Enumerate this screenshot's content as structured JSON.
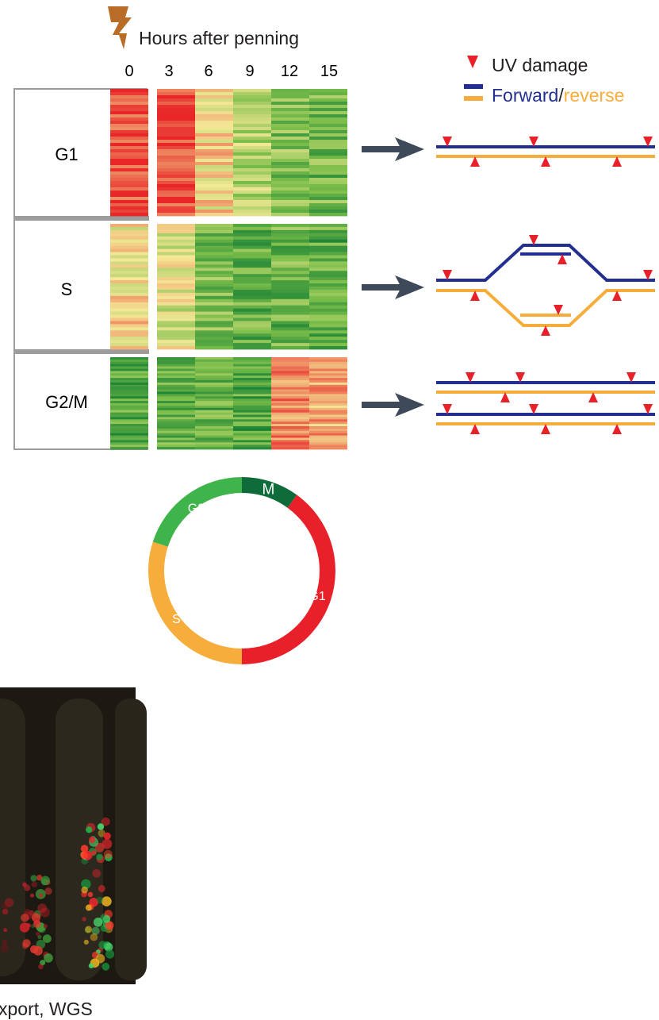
{
  "header": {
    "title": "Hours after penning",
    "hours": [
      "0",
      "3",
      "6",
      "9",
      "12",
      "15"
    ]
  },
  "phases": [
    {
      "label": "G1",
      "avg": [
        0.1,
        0.08,
        0.4,
        0.62,
        0.72,
        0.76
      ]
    },
    {
      "label": "S",
      "avg": [
        0.42,
        0.52,
        0.74,
        0.8,
        0.78,
        0.82
      ]
    },
    {
      "label": "G2/M",
      "avg": [
        0.82,
        0.82,
        0.8,
        0.84,
        0.22,
        0.3
      ]
    }
  ],
  "legend": {
    "uv_damage": "UV damage",
    "forward": "Forward",
    "separator": "/",
    "reverse": "reverse"
  },
  "cycle": {
    "segments": [
      {
        "label": "M",
        "color": "#0f6b3a",
        "fraction": 0.1
      },
      {
        "label": "G1",
        "color": "#e8202a",
        "fraction": 0.4
      },
      {
        "label": "S",
        "color": "#f7ad3b",
        "fraction": 0.3
      },
      {
        "label": "G2",
        "color": "#3fb44a",
        "fraction": 0.2
      }
    ]
  },
  "photo": {
    "caption": "xport, WGS"
  },
  "colors": {
    "forward_strand": "#232f8f",
    "reverse_strand": "#f7ad3b",
    "uv_marker": "#e8202a",
    "arrow": "#3e4a5a",
    "frame": "#9c9c9c"
  }
}
